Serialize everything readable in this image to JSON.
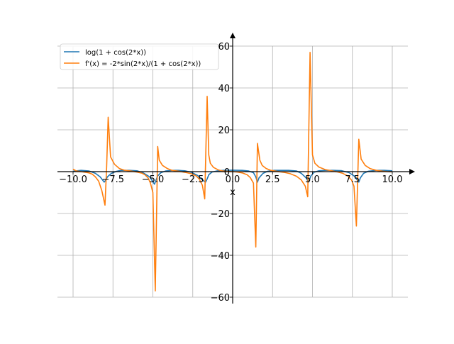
{
  "chart_data": {
    "type": "line",
    "title": "",
    "xlabel": "x",
    "ylabel": "",
    "xlim": [
      -10.5,
      11
    ],
    "ylim": [
      -63,
      65
    ],
    "grid": true,
    "legend_position": "top-left",
    "xticks": [
      -10.0,
      -7.5,
      -5.0,
      -2.5,
      0.0,
      2.5,
      5.0,
      7.5,
      10.0
    ],
    "xtick_labels": [
      "−10.0",
      "−7.5",
      "−5.0",
      "−2.5",
      "0.0",
      "2.5",
      "5.0",
      "7.5",
      "10.0"
    ],
    "yticks": [
      -60,
      -40,
      -20,
      0,
      20,
      40,
      60
    ],
    "ytick_labels": [
      "−60",
      "−40",
      "−20",
      "0",
      "20",
      "40",
      "60"
    ],
    "series": [
      {
        "name": "log(1 + cos(2*x))",
        "color": "#1f77b4",
        "x": [
          -10,
          -9.5,
          -9,
          -8.6,
          -8.3,
          -8.05,
          -7.95,
          -7.85,
          -7.6,
          -7.3,
          -7,
          -6.5,
          -6,
          -5.6,
          -5.2,
          -4.9,
          -4.8,
          -4.7,
          -4.5,
          -4.2,
          -3.8,
          -3.4,
          -3,
          -2.6,
          -2.2,
          -1.9,
          -1.7,
          -1.6,
          -1.5,
          -1.3,
          -1,
          -0.6,
          0,
          0.6,
          1,
          1.3,
          1.45,
          1.55,
          1.65,
          1.9,
          2.2,
          2.6,
          3,
          3.5,
          4,
          4.3,
          4.6,
          4.75,
          4.8,
          4.9,
          5.1,
          5.4,
          5.8,
          6.3,
          6.8,
          7.3,
          7.6,
          7.8,
          7.9,
          8.0,
          8.2,
          8.5,
          9,
          9.5,
          10
        ],
        "y": [
          0.2,
          0.6,
          0.3,
          -0.8,
          -2.5,
          -5.0,
          -4.0,
          -2.5,
          -0.8,
          0.1,
          0.6,
          0.6,
          0.4,
          -0.6,
          -2.5,
          -6.0,
          -4.0,
          -2.0,
          -0.5,
          0.3,
          0.6,
          0.6,
          0.4,
          -0.3,
          -1.8,
          -4.0,
          -5.0,
          -3.5,
          -1.5,
          -0.2,
          0.3,
          0.6,
          0.7,
          0.6,
          0.3,
          -0.5,
          -2.5,
          -5.0,
          -3.0,
          -0.8,
          0.2,
          0.6,
          0.6,
          0.6,
          0.3,
          -0.8,
          -3.0,
          -5.0,
          -4.0,
          -2.0,
          -0.3,
          0.4,
          0.6,
          0.6,
          0.5,
          -0.5,
          -2.0,
          -4.0,
          -5.0,
          -3.0,
          -0.8,
          0.2,
          0.6,
          0.6,
          0.4
        ]
      },
      {
        "name": "f'(x) = -2*sin(2*x)/(1 + cos(2*x))",
        "color": "#ff7f0e",
        "x": [
          -10,
          -9.8,
          -9.5,
          -9.2,
          -9,
          -8.8,
          -8.6,
          -8.4,
          -8.2,
          -8.0,
          -7.9,
          -7.8,
          -7.65,
          -7.4,
          -7.1,
          -6.8,
          -6.4,
          -6,
          -5.7,
          -5.5,
          -5.3,
          -5.15,
          -5.0,
          -4.85,
          -4.7,
          -4.6,
          -4.4,
          -4.1,
          -3.8,
          -3.4,
          -3,
          -2.6,
          -2.3,
          -2.1,
          -1.9,
          -1.75,
          -1.6,
          -1.5,
          -1.4,
          -1.2,
          -0.9,
          -0.6,
          -0.3,
          0,
          0.3,
          0.6,
          0.9,
          1.1,
          1.3,
          1.45,
          1.55,
          1.7,
          1.85,
          2.1,
          2.4,
          2.8,
          3.2,
          3.6,
          4.0,
          4.3,
          4.55,
          4.7,
          4.85,
          5.0,
          5.15,
          5.4,
          5.8,
          6.2,
          6.6,
          6.9,
          7.2,
          7.45,
          7.6,
          7.75,
          7.9,
          8.05,
          8.3,
          8.6,
          9,
          9.4,
          9.7,
          10
        ],
        "y": [
          1.2,
          0.3,
          0.0,
          -0.3,
          -0.6,
          -1.2,
          -2.5,
          -4.5,
          -9.0,
          -16.0,
          2.0,
          26.0,
          7.0,
          3.5,
          1.5,
          0.7,
          0.3,
          -0.2,
          -0.7,
          -1.5,
          -3.0,
          -5.5,
          -10.0,
          -57.0,
          12.0,
          5.5,
          3.0,
          1.5,
          0.6,
          0.2,
          -0.3,
          -1.0,
          -2.0,
          -3.5,
          -6.5,
          -13.0,
          36.0,
          8.0,
          4.0,
          2.0,
          0.8,
          0.3,
          0.1,
          0.0,
          -0.2,
          -0.6,
          -1.5,
          -2.8,
          -5.5,
          -36.0,
          13.5,
          5.5,
          3.0,
          1.5,
          0.6,
          0.1,
          -0.3,
          -1.0,
          -2.2,
          -4.0,
          -7.0,
          -12.0,
          57.0,
          8.0,
          4.0,
          2.2,
          1.0,
          0.4,
          -0.2,
          -0.8,
          -2.0,
          -4.0,
          -7.0,
          -26.0,
          15.5,
          6.0,
          3.0,
          1.5,
          0.6,
          0.2,
          0.0,
          -0.1
        ]
      }
    ]
  }
}
